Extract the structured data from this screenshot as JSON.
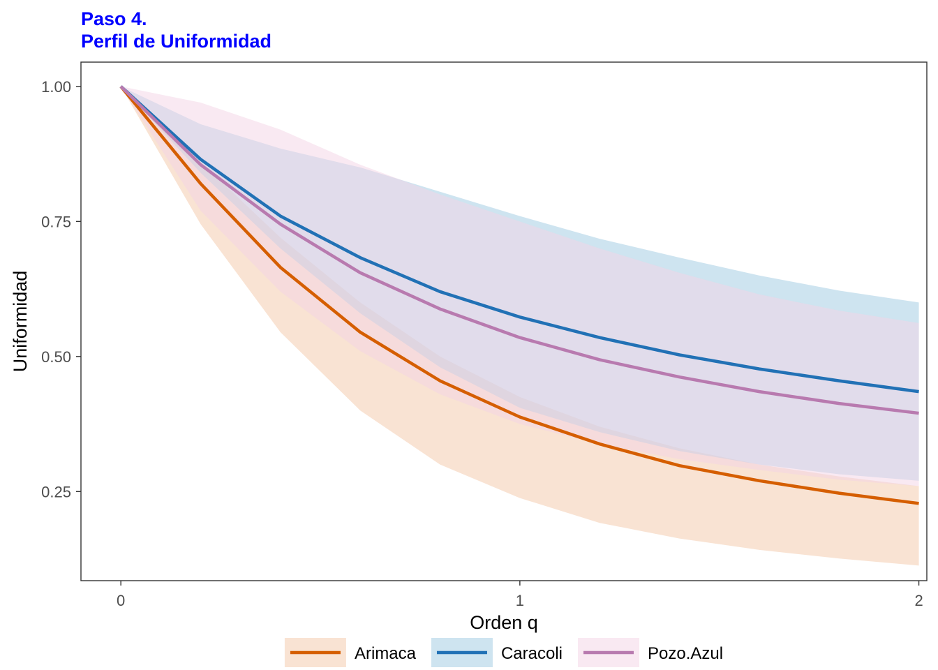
{
  "chart_data": {
    "type": "line",
    "title": "Paso 4.",
    "subtitle": "Perfil de Uniformidad",
    "title_color": "#0000FF",
    "xlabel": "Orden q",
    "ylabel": "Uniformidad",
    "xlim": [
      -0.1,
      2.02
    ],
    "ylim": [
      0.085,
      1.045
    ],
    "x_ticks": [
      0,
      1,
      2
    ],
    "x_tick_labels": [
      "0",
      "1",
      "2"
    ],
    "y_ticks": [
      0.25,
      0.5,
      0.75,
      1.0
    ],
    "y_tick_labels": [
      "0.25",
      "0.50",
      "0.75",
      "1.00"
    ],
    "grid": false,
    "legend_position": "bottom",
    "x": [
      0,
      0.2,
      0.4,
      0.6,
      0.8,
      1.0,
      1.2,
      1.4,
      1.6,
      1.8,
      2.0
    ],
    "series": [
      {
        "name": "Arimaca",
        "line_color": "#D55E00",
        "fill_color": "#F4C8A8",
        "values": [
          1.0,
          0.82,
          0.665,
          0.545,
          0.455,
          0.388,
          0.338,
          0.298,
          0.27,
          0.247,
          0.228
        ],
        "lower": [
          1.0,
          0.745,
          0.545,
          0.4,
          0.3,
          0.238,
          0.192,
          0.163,
          0.142,
          0.126,
          0.113
        ],
        "upper": [
          1.0,
          0.86,
          0.72,
          0.6,
          0.5,
          0.425,
          0.37,
          0.33,
          0.3,
          0.278,
          0.26
        ]
      },
      {
        "name": "Caracoli",
        "line_color": "#2171B5",
        "fill_color": "#9ECAE1",
        "values": [
          1.0,
          0.865,
          0.76,
          0.683,
          0.62,
          0.573,
          0.535,
          0.503,
          0.477,
          0.455,
          0.435
        ],
        "lower": [
          1.0,
          0.84,
          0.7,
          0.58,
          0.48,
          0.405,
          0.36,
          0.325,
          0.3,
          0.282,
          0.27
        ],
        "upper": [
          1.0,
          0.93,
          0.885,
          0.85,
          0.805,
          0.76,
          0.718,
          0.683,
          0.65,
          0.622,
          0.6
        ]
      },
      {
        "name": "Pozo.Azul",
        "line_color": "#B87AAF",
        "fill_color": "#F3D3E5",
        "values": [
          1.0,
          0.855,
          0.745,
          0.655,
          0.588,
          0.535,
          0.494,
          0.462,
          0.435,
          0.413,
          0.395
        ],
        "lower": [
          1.0,
          0.77,
          0.62,
          0.51,
          0.43,
          0.375,
          0.338,
          0.31,
          0.29,
          0.272,
          0.26
        ],
        "upper": [
          1.0,
          0.97,
          0.92,
          0.855,
          0.8,
          0.75,
          0.7,
          0.655,
          0.615,
          0.585,
          0.562
        ]
      }
    ]
  }
}
